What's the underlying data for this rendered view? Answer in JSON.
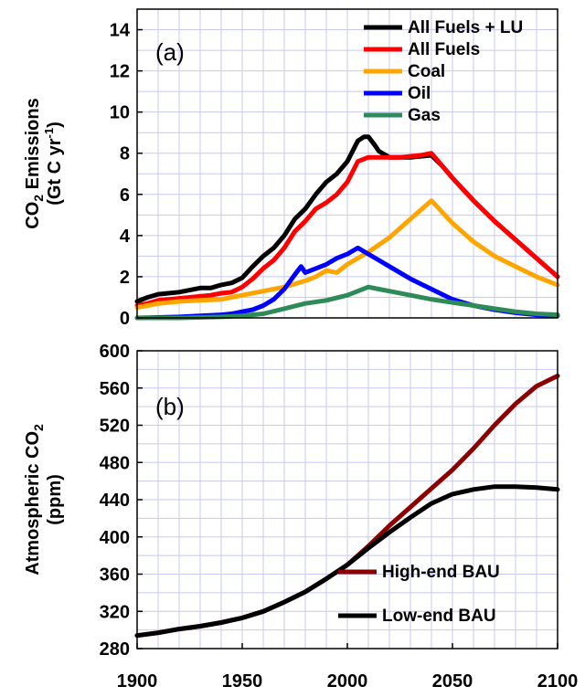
{
  "chart_data": [
    {
      "type": "line",
      "panel_label": "(a)",
      "ylabel_line1_main": "CO",
      "ylabel_line1_sub": "2",
      "ylabel_line1_rest": " Emissions",
      "ylabel_line2_main": "(Gt  C yr",
      "ylabel_line2_sup": "-1",
      "ylabel_line2_end": ")",
      "xlim": [
        1900,
        2100
      ],
      "ylim": [
        0,
        15
      ],
      "yticks": [
        0,
        2,
        4,
        6,
        8,
        10,
        12,
        14
      ],
      "grid": true,
      "legend": "top-right",
      "series": [
        {
          "name": "All Fuels + LU",
          "color": "#000000",
          "x": [
            1900,
            1905,
            1910,
            1915,
            1920,
            1925,
            1930,
            1935,
            1940,
            1945,
            1950,
            1955,
            1960,
            1965,
            1970,
            1975,
            1980,
            1985,
            1990,
            1995,
            2000,
            2003,
            2005,
            2008,
            2010,
            2013,
            2015,
            2020,
            2025,
            2030,
            2035,
            2040,
            2045,
            2050,
            2060,
            2070,
            2080,
            2090,
            2100
          ],
          "y": [
            0.8,
            1.0,
            1.15,
            1.2,
            1.25,
            1.35,
            1.45,
            1.45,
            1.6,
            1.7,
            1.95,
            2.5,
            3.0,
            3.4,
            4.0,
            4.8,
            5.3,
            6.0,
            6.6,
            7.0,
            7.6,
            8.2,
            8.6,
            8.8,
            8.8,
            8.4,
            8.1,
            7.8,
            7.8,
            7.8,
            7.85,
            7.9,
            7.4,
            6.8,
            5.7,
            4.7,
            3.8,
            2.9,
            2.0
          ]
        },
        {
          "name": "All Fuels",
          "color": "#ff0000",
          "x": [
            1900,
            1905,
            1910,
            1915,
            1920,
            1925,
            1930,
            1935,
            1940,
            1945,
            1950,
            1955,
            1960,
            1965,
            1970,
            1975,
            1980,
            1985,
            1990,
            1995,
            2000,
            2005,
            2010,
            2015,
            2020,
            2025,
            2030,
            2035,
            2040,
            2045,
            2050,
            2060,
            2070,
            2080,
            2090,
            2100
          ],
          "y": [
            0.6,
            0.7,
            0.85,
            0.9,
            0.95,
            1.0,
            1.05,
            1.1,
            1.2,
            1.25,
            1.5,
            1.9,
            2.4,
            2.8,
            3.4,
            4.2,
            4.7,
            5.3,
            5.6,
            6.0,
            6.6,
            7.6,
            7.8,
            7.8,
            7.8,
            7.8,
            7.85,
            7.9,
            8.0,
            7.4,
            6.8,
            5.7,
            4.7,
            3.8,
            2.9,
            2.0
          ]
        },
        {
          "name": "Coal",
          "color": "#ffa500",
          "x": [
            1900,
            1905,
            1910,
            1920,
            1930,
            1940,
            1950,
            1960,
            1970,
            1980,
            1985,
            1990,
            1995,
            2000,
            2005,
            2010,
            2020,
            2030,
            2040,
            2050,
            2060,
            2070,
            2080,
            2090,
            2100
          ],
          "y": [
            0.5,
            0.6,
            0.7,
            0.8,
            0.85,
            0.9,
            1.1,
            1.3,
            1.5,
            1.8,
            2.0,
            2.3,
            2.2,
            2.6,
            2.9,
            3.2,
            3.9,
            4.8,
            5.7,
            4.6,
            3.7,
            3.0,
            2.5,
            2.0,
            1.6
          ]
        },
        {
          "name": "Oil",
          "color": "#0000ff",
          "x": [
            1900,
            1910,
            1920,
            1930,
            1940,
            1945,
            1950,
            1955,
            1960,
            1965,
            1970,
            1975,
            1978,
            1980,
            1985,
            1990,
            1995,
            2000,
            2005,
            2010,
            2015,
            2020,
            2030,
            2040,
            2050,
            2060,
            2070,
            2080,
            2090,
            2100
          ],
          "y": [
            0.0,
            0.02,
            0.05,
            0.1,
            0.15,
            0.2,
            0.3,
            0.4,
            0.6,
            0.9,
            1.4,
            2.1,
            2.5,
            2.2,
            2.4,
            2.6,
            2.9,
            3.1,
            3.4,
            3.1,
            2.8,
            2.5,
            1.9,
            1.4,
            0.9,
            0.6,
            0.4,
            0.25,
            0.15,
            0.1
          ]
        },
        {
          "name": "Gas",
          "color": "#2e8b57",
          "x": [
            1900,
            1920,
            1940,
            1950,
            1960,
            1970,
            1980,
            1990,
            2000,
            2005,
            2010,
            2015,
            2020,
            2030,
            2040,
            2050,
            2060,
            2070,
            2080,
            2090,
            2100
          ],
          "y": [
            0.0,
            0.0,
            0.05,
            0.1,
            0.2,
            0.45,
            0.7,
            0.85,
            1.1,
            1.3,
            1.5,
            1.4,
            1.3,
            1.1,
            0.9,
            0.75,
            0.6,
            0.45,
            0.3,
            0.2,
            0.15
          ]
        }
      ]
    },
    {
      "type": "line",
      "panel_label": "(b)",
      "ylabel_line1_main": "Atmospheric CO",
      "ylabel_line1_sub": "2",
      "ylabel_line2": "(ppm)",
      "xlim": [
        1900,
        2100
      ],
      "ylim": [
        280,
        600
      ],
      "yticks": [
        280,
        320,
        360,
        400,
        440,
        480,
        520,
        560,
        600
      ],
      "xticks": [
        1900,
        1950,
        2000,
        2050,
        2100
      ],
      "grid": true,
      "legend": "bottom-right",
      "series": [
        {
          "name": "High-end BAU",
          "color": "#8b0000",
          "x": [
            1900,
            1910,
            1920,
            1930,
            1940,
            1950,
            1960,
            1970,
            1980,
            1990,
            2000,
            2010,
            2020,
            2030,
            2040,
            2050,
            2060,
            2070,
            2080,
            2090,
            2100
          ],
          "y": [
            294,
            297,
            301,
            304,
            308,
            313,
            320,
            330,
            341,
            355,
            370,
            390,
            412,
            432,
            452,
            472,
            495,
            520,
            543,
            562,
            573
          ]
        },
        {
          "name": "Low-end BAU",
          "color": "#000000",
          "x": [
            1900,
            1910,
            1920,
            1930,
            1940,
            1950,
            1960,
            1970,
            1980,
            1990,
            2000,
            2010,
            2020,
            2030,
            2040,
            2050,
            2060,
            2070,
            2080,
            2090,
            2100
          ],
          "y": [
            294,
            297,
            301,
            304,
            308,
            313,
            320,
            330,
            341,
            355,
            370,
            388,
            405,
            421,
            436,
            446,
            451,
            454,
            454,
            453,
            451
          ]
        }
      ]
    }
  ]
}
